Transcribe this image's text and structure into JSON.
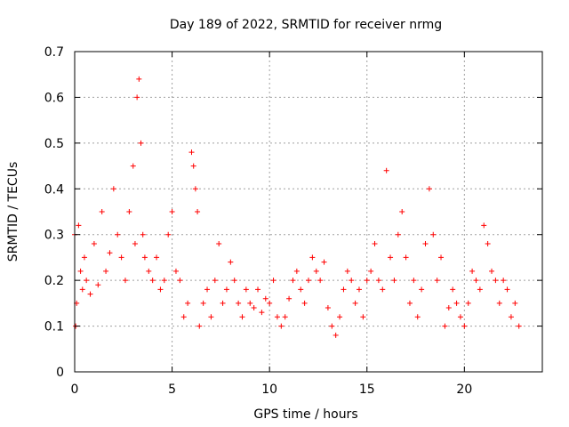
{
  "chart_data": {
    "type": "scatter",
    "title": "Day 189 of 2022, SRMTID for receiver nrmg",
    "xlabel": "GPS time / hours",
    "ylabel": "SRMTID / TECUs",
    "xlim": [
      0,
      24
    ],
    "ylim": [
      0,
      0.7
    ],
    "x_ticks": [
      0,
      5,
      10,
      15,
      20
    ],
    "x_tick_labels": [
      "0",
      "5",
      "10",
      "15",
      "20"
    ],
    "y_ticks": [
      0,
      0.1,
      0.2,
      0.3,
      0.4,
      0.5,
      0.6,
      0.7
    ],
    "y_tick_labels": [
      "0",
      "0.1",
      "0.2",
      "0.3",
      "0.4",
      "0.5",
      "0.6",
      "0.7"
    ],
    "grid": true,
    "marker": "plus",
    "color": "#ff0000",
    "series": [
      {
        "name": "SRMTID",
        "x": [
          0.0,
          0.05,
          0.1,
          0.2,
          0.3,
          0.4,
          0.5,
          0.6,
          0.8,
          1.0,
          1.2,
          1.4,
          1.6,
          1.8,
          2.0,
          2.2,
          2.4,
          2.6,
          2.8,
          3.0,
          3.1,
          3.2,
          3.3,
          3.4,
          3.5,
          3.6,
          3.8,
          4.0,
          4.2,
          4.4,
          4.6,
          4.8,
          5.0,
          5.2,
          5.4,
          5.6,
          5.8,
          6.0,
          6.1,
          6.2,
          6.3,
          6.4,
          6.6,
          6.8,
          7.0,
          7.2,
          7.4,
          7.6,
          7.8,
          8.0,
          8.2,
          8.4,
          8.6,
          8.8,
          9.0,
          9.2,
          9.4,
          9.6,
          9.8,
          10.0,
          10.2,
          10.4,
          10.6,
          10.8,
          11.0,
          11.2,
          11.4,
          11.6,
          11.8,
          12.0,
          12.2,
          12.4,
          12.6,
          12.8,
          13.0,
          13.2,
          13.4,
          13.6,
          13.8,
          14.0,
          14.2,
          14.4,
          14.6,
          14.8,
          15.0,
          15.2,
          15.4,
          15.6,
          15.8,
          16.0,
          16.2,
          16.4,
          16.6,
          16.8,
          17.0,
          17.2,
          17.4,
          17.6,
          17.8,
          18.0,
          18.2,
          18.4,
          18.6,
          18.8,
          19.0,
          19.2,
          19.4,
          19.6,
          19.8,
          20.0,
          20.2,
          20.4,
          20.6,
          20.8,
          21.0,
          21.2,
          21.4,
          21.6,
          21.8,
          22.0,
          22.2,
          22.4,
          22.6,
          22.8
        ],
        "y": [
          0.3,
          0.1,
          0.15,
          0.32,
          0.22,
          0.18,
          0.25,
          0.2,
          0.17,
          0.28,
          0.19,
          0.35,
          0.22,
          0.26,
          0.4,
          0.3,
          0.25,
          0.2,
          0.35,
          0.45,
          0.28,
          0.6,
          0.64,
          0.5,
          0.3,
          0.25,
          0.22,
          0.2,
          0.25,
          0.18,
          0.2,
          0.3,
          0.35,
          0.22,
          0.2,
          0.12,
          0.15,
          0.48,
          0.45,
          0.4,
          0.35,
          0.1,
          0.15,
          0.18,
          0.12,
          0.2,
          0.28,
          0.15,
          0.18,
          0.24,
          0.2,
          0.15,
          0.12,
          0.18,
          0.15,
          0.14,
          0.18,
          0.13,
          0.16,
          0.15,
          0.2,
          0.12,
          0.1,
          0.12,
          0.16,
          0.2,
          0.22,
          0.18,
          0.15,
          0.2,
          0.25,
          0.22,
          0.2,
          0.24,
          0.14,
          0.1,
          0.08,
          0.12,
          0.18,
          0.22,
          0.2,
          0.15,
          0.18,
          0.12,
          0.2,
          0.22,
          0.28,
          0.2,
          0.18,
          0.44,
          0.25,
          0.2,
          0.3,
          0.35,
          0.25,
          0.15,
          0.2,
          0.12,
          0.18,
          0.28,
          0.4,
          0.3,
          0.2,
          0.25,
          0.1,
          0.14,
          0.18,
          0.15,
          0.12,
          0.1,
          0.15,
          0.22,
          0.2,
          0.18,
          0.32,
          0.28,
          0.22,
          0.2,
          0.15,
          0.2,
          0.18,
          0.12,
          0.15,
          0.1
        ]
      }
    ]
  }
}
